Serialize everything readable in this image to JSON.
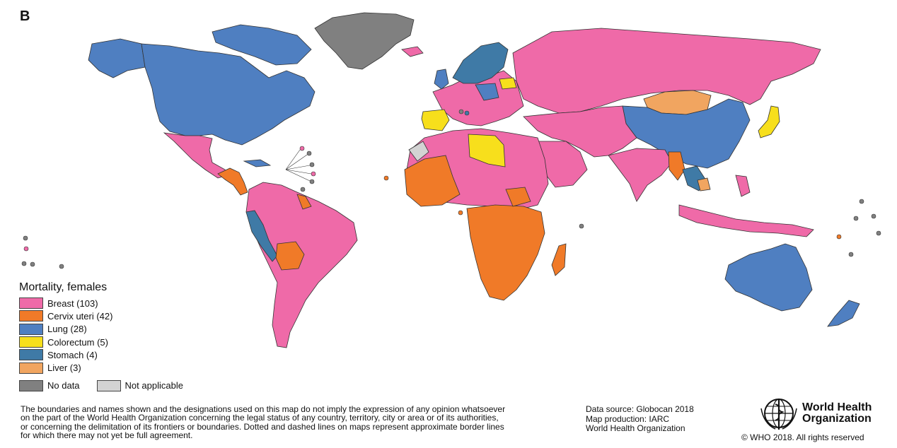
{
  "panel_label": "B",
  "legend": {
    "title": "Mortality, females",
    "items": [
      {
        "label": "Breast (103)",
        "color": "#ef6aa8"
      },
      {
        "label": "Cervix uteri (42)",
        "color": "#f07a28"
      },
      {
        "label": "Lung (28)",
        "color": "#4f7fc1"
      },
      {
        "label": "Colorectum (5)",
        "color": "#f7df1c"
      },
      {
        "label": "Stomach (4)",
        "color": "#3f7aa6"
      },
      {
        "label": "Liver (3)",
        "color": "#f1a560"
      }
    ],
    "no_data": {
      "label": "No data",
      "color": "#808080"
    },
    "not_applicable": {
      "label": "Not applicable",
      "color": "#d3d3d3"
    }
  },
  "disclaimer": {
    "line1": "The boundaries and names shown and the designations used on this map do not imply the expression of any opinion whatsoever",
    "line2": "on the part of the World Health Organization concerning the legal status of any country, territory, city or area or of its authorities,",
    "line3": "or concerning the delimitation of its frontiers or boundaries. Dotted and dashed lines on maps represent approximate border lines",
    "line4": "for which there may not yet be full agreement."
  },
  "source": {
    "line1": "Data source: Globocan 2018",
    "line2": "Map production: IARC",
    "line3": "World Health Organization"
  },
  "logo": {
    "line1": "World Health",
    "line2": "Organization"
  },
  "copyright": "© WHO 2018. All rights reserved"
}
